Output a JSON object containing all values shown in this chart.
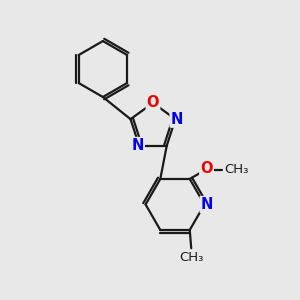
{
  "background_color": "#e8e8e8",
  "bond_color": "#1a1a1a",
  "bond_width": 1.6,
  "atom_colors": {
    "N": "#0000ee",
    "O": "#ee0000",
    "C": "#1a1a1a"
  },
  "font_size_atom": 10.5,
  "font_size_label": 9.5
}
